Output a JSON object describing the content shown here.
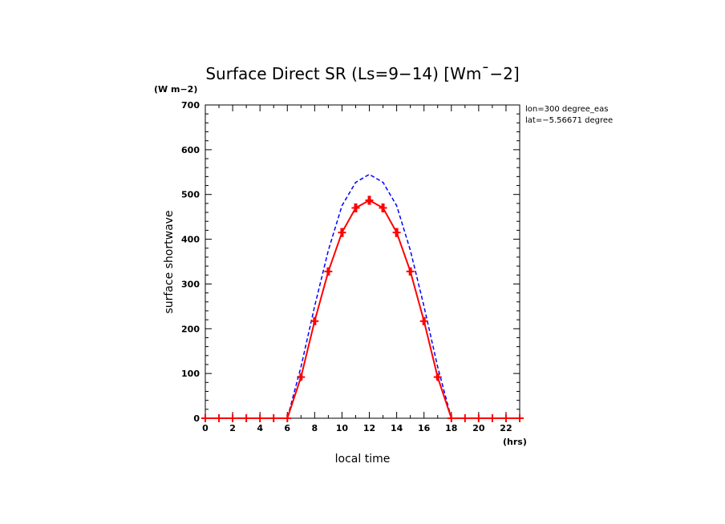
{
  "chart_data": {
    "type": "line",
    "title": "Surface Direct SR (Ls=9−14) [Wm¯−2]",
    "unit_label": "(W m−2)",
    "xlabel": "local time",
    "xunit": "(hrs)",
    "ylabel": "surface shortwave",
    "xlim": [
      0,
      23
    ],
    "ylim": [
      0,
      700
    ],
    "xticks": [
      0,
      2,
      4,
      6,
      8,
      10,
      12,
      14,
      16,
      18,
      20,
      22
    ],
    "yticks": [
      0,
      100,
      200,
      300,
      400,
      500,
      600,
      700
    ],
    "info": [
      "lon=300 degree_eas",
      "lat=−5.56671 degree"
    ],
    "series": [
      {
        "color": "#ff0000",
        "style": "solid",
        "x": [
          0,
          1,
          2,
          3,
          4,
          5,
          6,
          7,
          8,
          9,
          10,
          11,
          12,
          13,
          14,
          15,
          16,
          17,
          18,
          19,
          20,
          21,
          22,
          23
        ],
        "y": [
          0,
          0,
          0,
          0,
          0,
          0,
          0,
          92,
          217,
          328,
          415,
          470,
          487,
          470,
          415,
          328,
          217,
          92,
          0,
          0,
          0,
          0,
          0,
          0
        ],
        "err": [
          0,
          0,
          0,
          0,
          0,
          0,
          0,
          7,
          9,
          9,
          10,
          10,
          10,
          10,
          10,
          9,
          9,
          7,
          0,
          0,
          0,
          0,
          0,
          0
        ]
      },
      {
        "color": "#0000ff",
        "style": "dashed",
        "x": [
          0,
          1,
          2,
          3,
          4,
          5,
          6,
          7,
          8,
          9,
          10,
          11,
          12,
          13,
          14,
          15,
          16,
          17,
          18,
          19,
          20,
          21,
          22,
          23
        ],
        "y": [
          0,
          0,
          0,
          0,
          0,
          0,
          0,
          115,
          250,
          375,
          475,
          527,
          545,
          527,
          475,
          375,
          250,
          115,
          0,
          0,
          0,
          0,
          0,
          0
        ]
      }
    ]
  }
}
